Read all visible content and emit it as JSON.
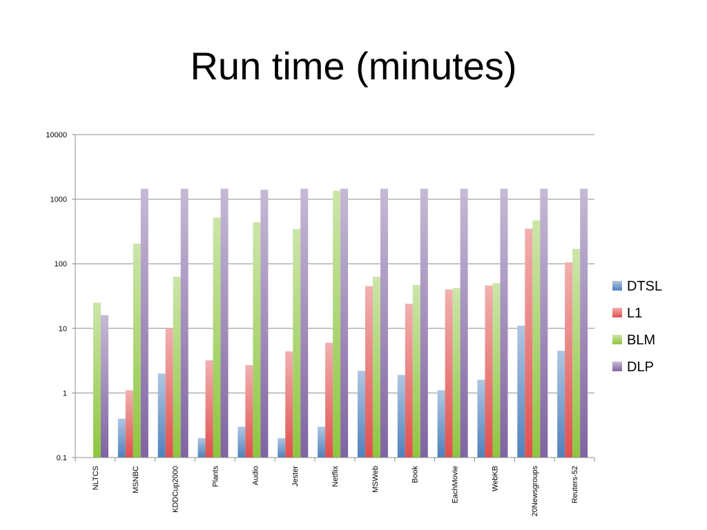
{
  "chart_data": {
    "type": "bar",
    "title": "Run time (minutes)",
    "yscale": "log",
    "ylim": [
      0.1,
      10000
    ],
    "yticks": [
      "0.1",
      "1",
      "10",
      "100",
      "1000",
      "10000"
    ],
    "grid": true,
    "legend_position": "right",
    "categories": [
      "NLTCS",
      "MSNBC",
      "KDDCup2000",
      "Plants",
      "Audio",
      "Jester",
      "Netflix",
      "MSWeb",
      "Book",
      "EachMovie",
      "WebKB",
      "20Newsgroups",
      "Reuters-52"
    ],
    "series": [
      {
        "name": "DTSL",
        "color": "#4f81bd",
        "values": [
          0.1,
          0.4,
          2.0,
          0.2,
          0.3,
          0.2,
          0.3,
          2.2,
          1.9,
          1.1,
          1.6,
          11,
          4.5
        ]
      },
      {
        "name": "L1",
        "color": "#e0504e",
        "values": [
          0.1,
          1.1,
          10,
          3.2,
          2.7,
          4.4,
          6.0,
          45,
          24,
          40,
          46,
          350,
          105
        ]
      },
      {
        "name": "BLM",
        "color": "#8dc63f",
        "values": [
          25,
          205,
          63,
          520,
          440,
          345,
          1350,
          63,
          47,
          42,
          50,
          470,
          170
        ]
      },
      {
        "name": "DLP",
        "color": "#8064a2",
        "values": [
          16,
          1450,
          1450,
          1450,
          1400,
          1450,
          1450,
          1450,
          1450,
          1450,
          1450,
          1450,
          1450
        ]
      }
    ]
  }
}
